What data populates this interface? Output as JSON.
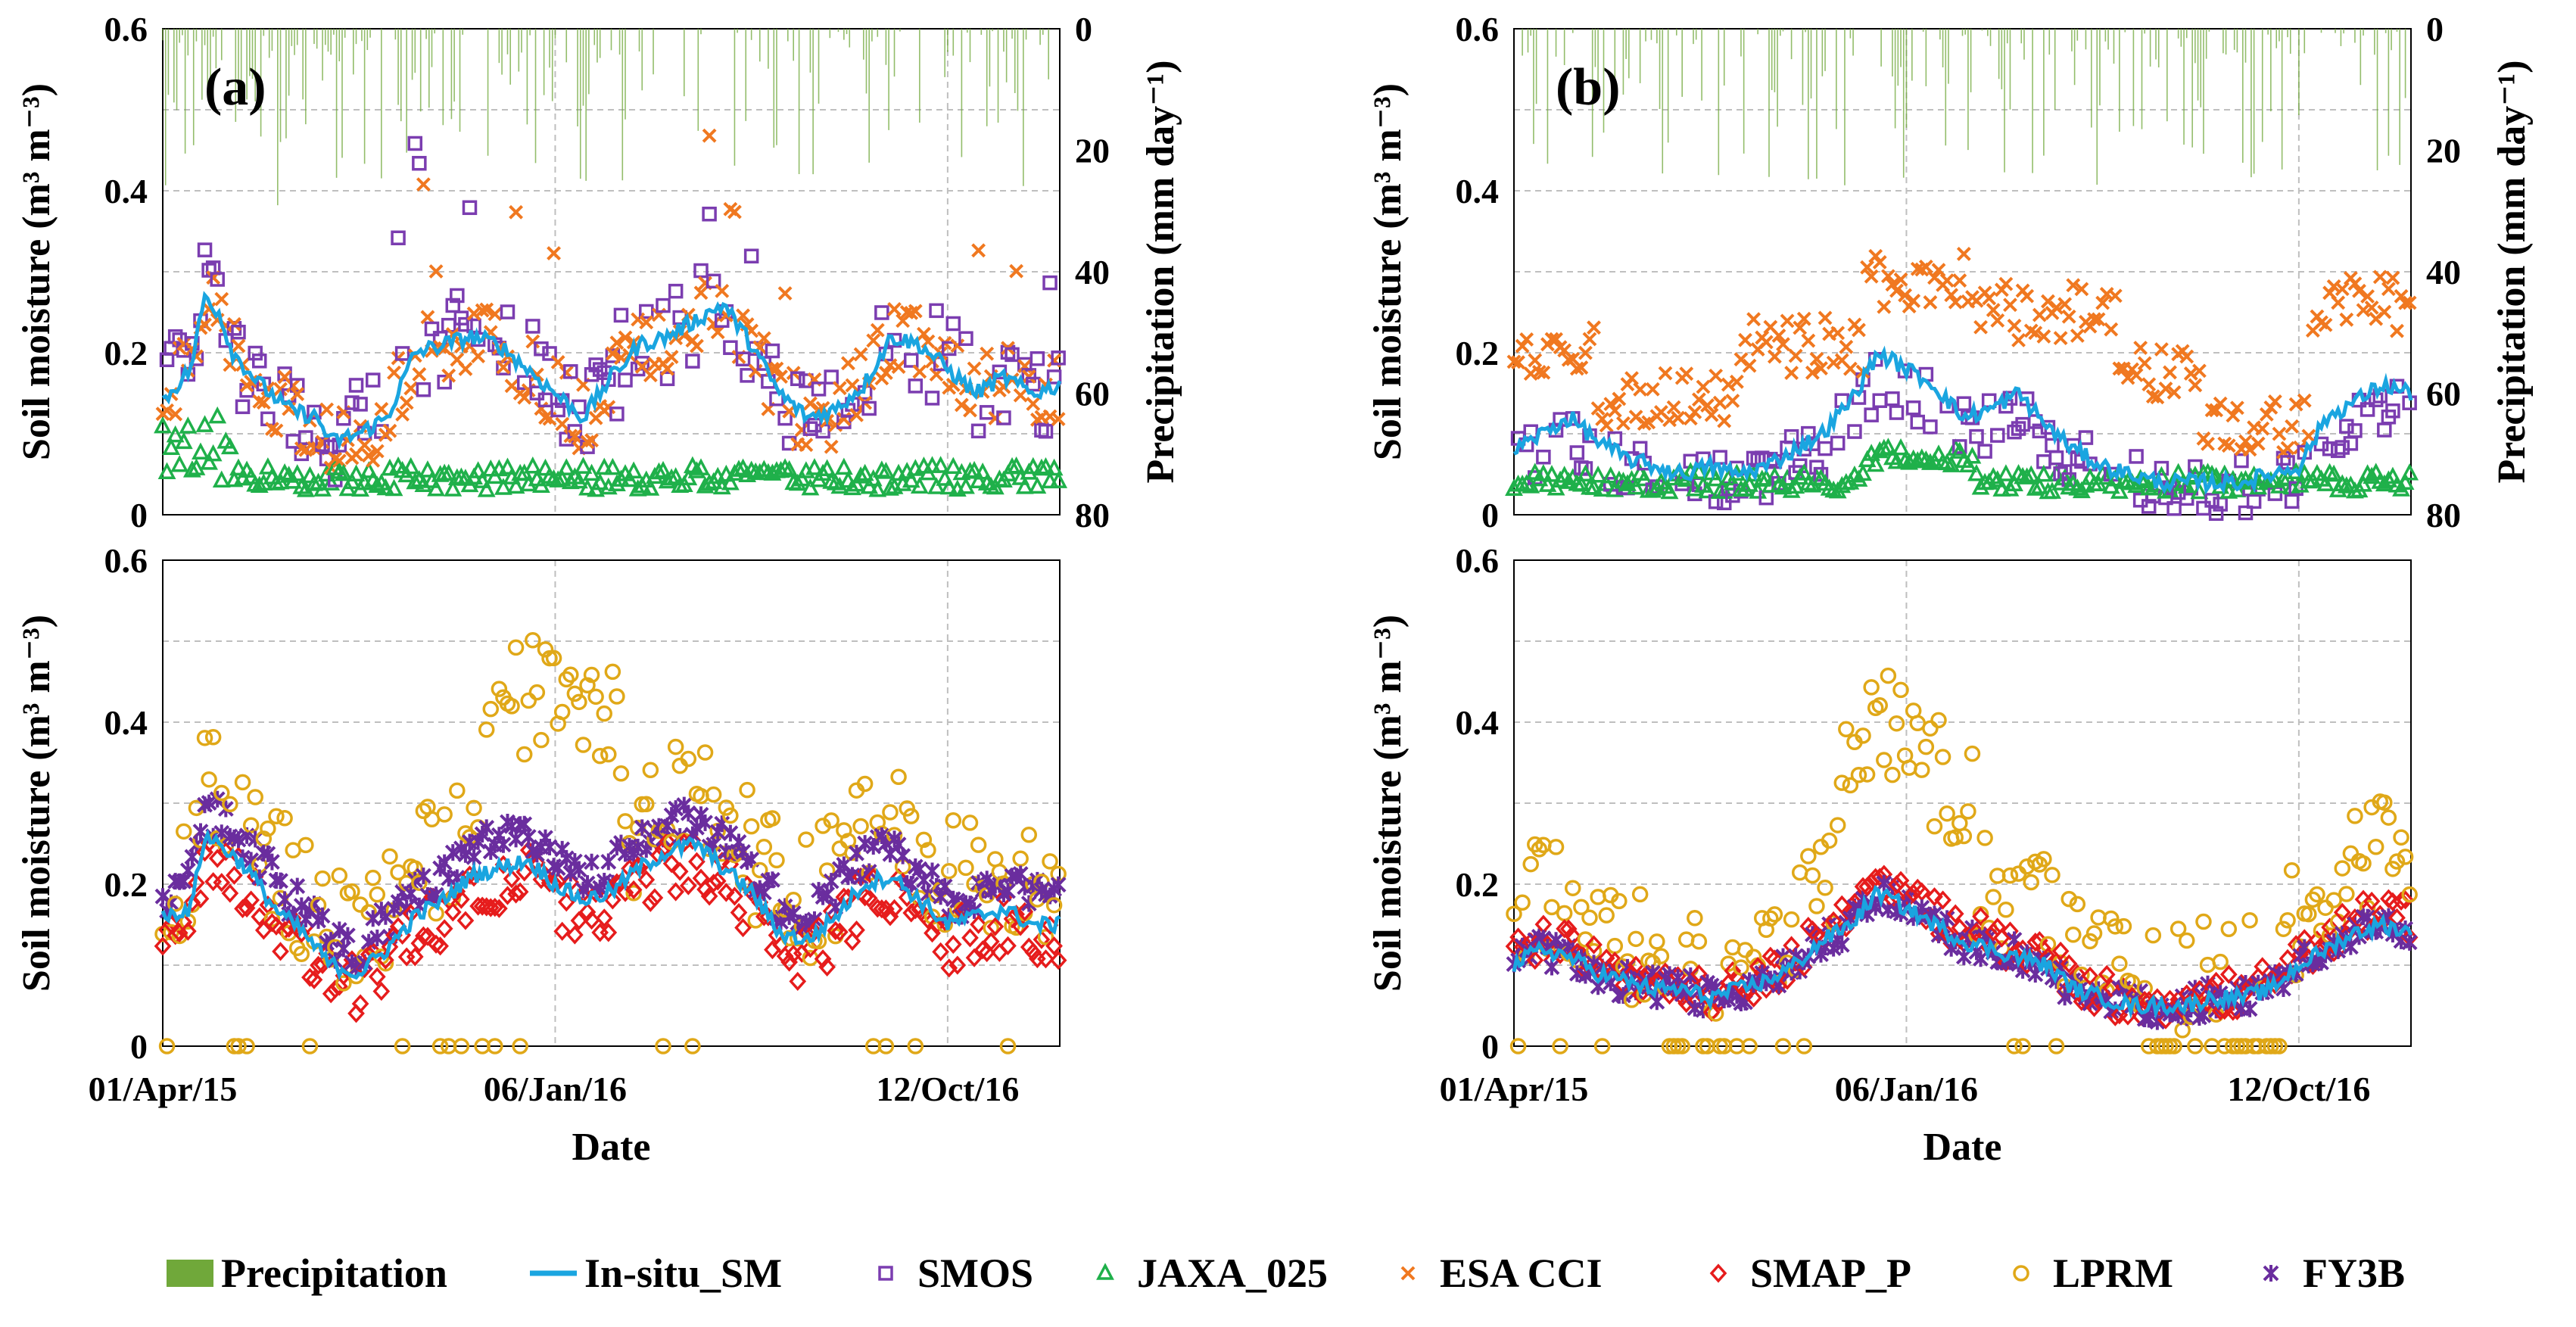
{
  "figure": {
    "colors": {
      "Precipitation": "#70a83a",
      "In-situ_SM": "#1aa5e0",
      "SMOS": "#7b3db0",
      "JAXA_025": "#1fb04a",
      "ESA CCI": "#f07820",
      "SMAP_P": "#e61c1c",
      "LPRM": "#e0a818",
      "FY3B": "#6a2d9e"
    },
    "legend": [
      "Precipitation",
      "In-situ_SM",
      "SMOS",
      "JAXA_025",
      "ESA CCI",
      "SMAP_P",
      "LPRM",
      "FY3B"
    ]
  },
  "chart_data": [
    {
      "id": "a-top",
      "panel_label": "(a)",
      "type": "scatter",
      "ylabel": "Soil moisture (m³ m⁻³)",
      "y2label": "Precipitation (mm day⁻¹)",
      "ylim": [
        0,
        0.6
      ],
      "y2lim": [
        80,
        0
      ],
      "yticks": [
        "0",
        "0.2",
        "0.4",
        "0.6"
      ],
      "y2ticks": [
        "0",
        "20",
        "40",
        "60",
        "80"
      ],
      "xlim": [
        0,
        640
      ],
      "series_names": [
        "Precipitation",
        "In-situ_SM",
        "SMOS",
        "JAXA_025",
        "ESA CCI"
      ],
      "in_situ": [
        [
          0,
          0.14
        ],
        [
          20,
          0.18
        ],
        [
          30,
          0.27
        ],
        [
          40,
          0.25
        ],
        [
          50,
          0.2
        ],
        [
          70,
          0.16
        ],
        [
          90,
          0.13
        ],
        [
          110,
          0.12
        ],
        [
          120,
          0.09
        ],
        [
          140,
          0.1
        ],
        [
          160,
          0.12
        ],
        [
          180,
          0.2
        ],
        [
          200,
          0.21
        ],
        [
          220,
          0.22
        ],
        [
          240,
          0.21
        ],
        [
          260,
          0.18
        ],
        [
          280,
          0.15
        ],
        [
          300,
          0.12
        ],
        [
          320,
          0.17
        ],
        [
          340,
          0.21
        ],
        [
          360,
          0.22
        ],
        [
          380,
          0.24
        ],
        [
          400,
          0.26
        ],
        [
          420,
          0.21
        ],
        [
          440,
          0.15
        ],
        [
          460,
          0.12
        ],
        [
          480,
          0.13
        ],
        [
          500,
          0.16
        ],
        [
          520,
          0.22
        ],
        [
          540,
          0.21
        ],
        [
          560,
          0.18
        ],
        [
          580,
          0.15
        ],
        [
          600,
          0.17
        ],
        [
          620,
          0.15
        ],
        [
          640,
          0.16
        ]
      ]
    },
    {
      "id": "a-bottom",
      "type": "scatter",
      "ylabel": "Soil moisture (m³ m⁻³)",
      "xlabel": "Date",
      "ylim": [
        0,
        0.6
      ],
      "yticks": [
        "0",
        "0.2",
        "0.4",
        "0.6"
      ],
      "xlim": [
        0,
        640
      ],
      "xticks": [
        "01/Apr/15",
        "06/Jan/16",
        "12/Oct/16"
      ],
      "series_names": [
        "In-situ_SM",
        "SMAP_P",
        "LPRM",
        "FY3B"
      ],
      "in_situ": [
        [
          0,
          0.16
        ],
        [
          20,
          0.17
        ],
        [
          30,
          0.26
        ],
        [
          40,
          0.25
        ],
        [
          60,
          0.22
        ],
        [
          80,
          0.17
        ],
        [
          100,
          0.14
        ],
        [
          120,
          0.1
        ],
        [
          140,
          0.09
        ],
        [
          160,
          0.12
        ],
        [
          180,
          0.16
        ],
        [
          200,
          0.18
        ],
        [
          220,
          0.21
        ],
        [
          240,
          0.22
        ],
        [
          260,
          0.23
        ],
        [
          280,
          0.2
        ],
        [
          300,
          0.18
        ],
        [
          320,
          0.19
        ],
        [
          340,
          0.22
        ],
        [
          360,
          0.24
        ],
        [
          380,
          0.25
        ],
        [
          400,
          0.22
        ],
        [
          420,
          0.19
        ],
        [
          440,
          0.14
        ],
        [
          460,
          0.13
        ],
        [
          480,
          0.16
        ],
        [
          500,
          0.2
        ],
        [
          520,
          0.21
        ],
        [
          540,
          0.18
        ],
        [
          560,
          0.15
        ],
        [
          580,
          0.16
        ],
        [
          600,
          0.17
        ],
        [
          620,
          0.15
        ],
        [
          640,
          0.15
        ]
      ]
    },
    {
      "id": "b-top",
      "panel_label": "(b)",
      "type": "scatter",
      "ylabel": "Soil moisture (m³ m⁻³)",
      "y2label": "Precipitation (mm day⁻¹)",
      "ylim": [
        0,
        0.6
      ],
      "y2lim": [
        80,
        0
      ],
      "yticks": [
        "0",
        "0.2",
        "0.4",
        "0.6"
      ],
      "y2ticks": [
        "0",
        "20",
        "40",
        "60",
        "80"
      ],
      "xlim": [
        0,
        640
      ],
      "series_names": [
        "Precipitation",
        "In-situ_SM",
        "SMOS",
        "JAXA_025",
        "ESA CCI"
      ],
      "in_situ": [
        [
          0,
          0.08
        ],
        [
          20,
          0.1
        ],
        [
          40,
          0.12
        ],
        [
          60,
          0.09
        ],
        [
          80,
          0.07
        ],
        [
          100,
          0.06
        ],
        [
          120,
          0.05
        ],
        [
          140,
          0.06
        ],
        [
          160,
          0.05
        ],
        [
          180,
          0.06
        ],
        [
          200,
          0.08
        ],
        [
          220,
          0.1
        ],
        [
          240,
          0.14
        ],
        [
          260,
          0.2
        ],
        [
          280,
          0.18
        ],
        [
          300,
          0.16
        ],
        [
          320,
          0.12
        ],
        [
          340,
          0.13
        ],
        [
          360,
          0.15
        ],
        [
          380,
          0.11
        ],
        [
          400,
          0.08
        ],
        [
          420,
          0.06
        ],
        [
          440,
          0.05
        ],
        [
          460,
          0.04
        ],
        [
          480,
          0.04
        ],
        [
          500,
          0.04
        ],
        [
          520,
          0.04
        ],
        [
          540,
          0.05
        ],
        [
          560,
          0.06
        ],
        [
          580,
          0.12
        ],
        [
          600,
          0.14
        ],
        [
          620,
          0.16
        ],
        [
          640,
          0.15
        ]
      ]
    },
    {
      "id": "b-bottom",
      "type": "scatter",
      "ylabel": "Soil moisture (m³ m⁻³)",
      "xlabel": "Date",
      "ylim": [
        0,
        0.6
      ],
      "yticks": [
        "0",
        "0.2",
        "0.4",
        "0.6"
      ],
      "xlim": [
        0,
        640
      ],
      "xticks": [
        "01/Apr/15",
        "06/Jan/16",
        "12/Oct/16"
      ],
      "series_names": [
        "In-situ_SM",
        "SMAP_P",
        "LPRM",
        "FY3B"
      ],
      "in_situ": [
        [
          0,
          0.1
        ],
        [
          20,
          0.12
        ],
        [
          40,
          0.11
        ],
        [
          60,
          0.09
        ],
        [
          80,
          0.08
        ],
        [
          100,
          0.07
        ],
        [
          120,
          0.07
        ],
        [
          140,
          0.06
        ],
        [
          160,
          0.07
        ],
        [
          180,
          0.08
        ],
        [
          200,
          0.1
        ],
        [
          220,
          0.13
        ],
        [
          240,
          0.15
        ],
        [
          260,
          0.19
        ],
        [
          280,
          0.17
        ],
        [
          300,
          0.15
        ],
        [
          320,
          0.13
        ],
        [
          340,
          0.12
        ],
        [
          360,
          0.11
        ],
        [
          380,
          0.1
        ],
        [
          400,
          0.07
        ],
        [
          420,
          0.06
        ],
        [
          440,
          0.05
        ],
        [
          460,
          0.05
        ],
        [
          480,
          0.05
        ],
        [
          500,
          0.06
        ],
        [
          520,
          0.06
        ],
        [
          540,
          0.07
        ],
        [
          560,
          0.1
        ],
        [
          580,
          0.12
        ],
        [
          600,
          0.14
        ],
        [
          620,
          0.15
        ],
        [
          640,
          0.14
        ]
      ]
    }
  ]
}
